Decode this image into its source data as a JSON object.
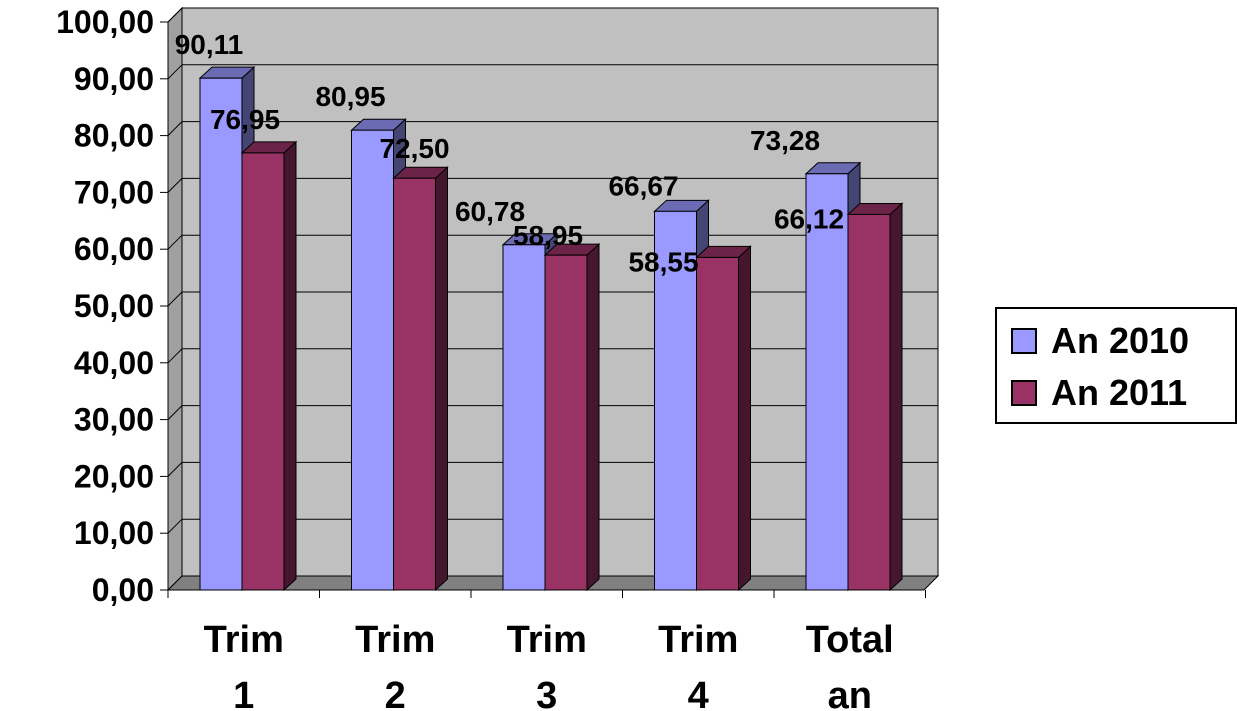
{
  "chart_data": {
    "type": "bar",
    "title": "",
    "xlabel": "",
    "ylabel": "",
    "categories": [
      [
        "Trim",
        "1"
      ],
      [
        "Trim",
        "2"
      ],
      [
        "Trim",
        "3"
      ],
      [
        "Trim",
        "4"
      ],
      [
        "Total",
        "an"
      ]
    ],
    "series": [
      {
        "name": "An 2010",
        "values": [
          90.11,
          80.95,
          60.78,
          66.67,
          73.28
        ],
        "labels": [
          "90,11",
          "80,95",
          "60,78",
          "66,67",
          "73,28"
        ],
        "color": "#9999ff"
      },
      {
        "name": "An 2011",
        "values": [
          76.95,
          72.5,
          58.95,
          58.55,
          66.12
        ],
        "labels": [
          "76,95",
          "72,50",
          "58,95",
          "58,55",
          "66,12"
        ],
        "color": "#993366"
      }
    ],
    "ylim": [
      0,
      100
    ],
    "yticks": [
      "0,00",
      "10,00",
      "20,00",
      "30,00",
      "40,00",
      "50,00",
      "60,00",
      "70,00",
      "80,00",
      "90,00",
      "100,00"
    ],
    "grid": true,
    "legend": "right",
    "style": "3d-clustered-column"
  }
}
